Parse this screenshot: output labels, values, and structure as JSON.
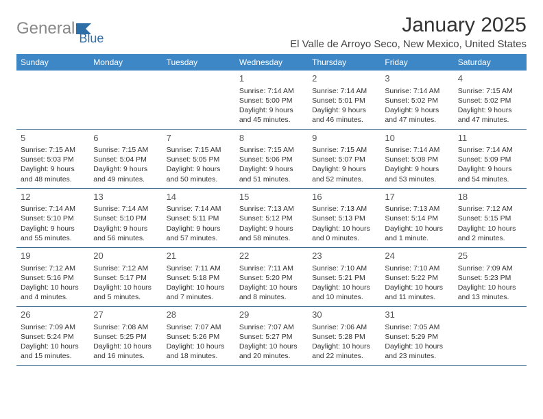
{
  "brand": {
    "part1": "General",
    "part2": "Blue"
  },
  "title": "January 2025",
  "location": "El Valle de Arroyo Seco, New Mexico, United States",
  "colors": {
    "header_bg": "#3d87c7",
    "header_fg": "#ffffff",
    "row_border": "#3d6a8f",
    "text": "#333333",
    "logo_gray": "#888888",
    "logo_blue": "#2f6fa8"
  },
  "weekdays": [
    "Sunday",
    "Monday",
    "Tuesday",
    "Wednesday",
    "Thursday",
    "Friday",
    "Saturday"
  ],
  "weeks": [
    [
      null,
      null,
      null,
      {
        "n": "1",
        "sr": "7:14 AM",
        "ss": "5:00 PM",
        "dl": "9 hours and 45 minutes."
      },
      {
        "n": "2",
        "sr": "7:14 AM",
        "ss": "5:01 PM",
        "dl": "9 hours and 46 minutes."
      },
      {
        "n": "3",
        "sr": "7:14 AM",
        "ss": "5:02 PM",
        "dl": "9 hours and 47 minutes."
      },
      {
        "n": "4",
        "sr": "7:15 AM",
        "ss": "5:02 PM",
        "dl": "9 hours and 47 minutes."
      }
    ],
    [
      {
        "n": "5",
        "sr": "7:15 AM",
        "ss": "5:03 PM",
        "dl": "9 hours and 48 minutes."
      },
      {
        "n": "6",
        "sr": "7:15 AM",
        "ss": "5:04 PM",
        "dl": "9 hours and 49 minutes."
      },
      {
        "n": "7",
        "sr": "7:15 AM",
        "ss": "5:05 PM",
        "dl": "9 hours and 50 minutes."
      },
      {
        "n": "8",
        "sr": "7:15 AM",
        "ss": "5:06 PM",
        "dl": "9 hours and 51 minutes."
      },
      {
        "n": "9",
        "sr": "7:15 AM",
        "ss": "5:07 PM",
        "dl": "9 hours and 52 minutes."
      },
      {
        "n": "10",
        "sr": "7:14 AM",
        "ss": "5:08 PM",
        "dl": "9 hours and 53 minutes."
      },
      {
        "n": "11",
        "sr": "7:14 AM",
        "ss": "5:09 PM",
        "dl": "9 hours and 54 minutes."
      }
    ],
    [
      {
        "n": "12",
        "sr": "7:14 AM",
        "ss": "5:10 PM",
        "dl": "9 hours and 55 minutes."
      },
      {
        "n": "13",
        "sr": "7:14 AM",
        "ss": "5:10 PM",
        "dl": "9 hours and 56 minutes."
      },
      {
        "n": "14",
        "sr": "7:14 AM",
        "ss": "5:11 PM",
        "dl": "9 hours and 57 minutes."
      },
      {
        "n": "15",
        "sr": "7:13 AM",
        "ss": "5:12 PM",
        "dl": "9 hours and 58 minutes."
      },
      {
        "n": "16",
        "sr": "7:13 AM",
        "ss": "5:13 PM",
        "dl": "10 hours and 0 minutes."
      },
      {
        "n": "17",
        "sr": "7:13 AM",
        "ss": "5:14 PM",
        "dl": "10 hours and 1 minute."
      },
      {
        "n": "18",
        "sr": "7:12 AM",
        "ss": "5:15 PM",
        "dl": "10 hours and 2 minutes."
      }
    ],
    [
      {
        "n": "19",
        "sr": "7:12 AM",
        "ss": "5:16 PM",
        "dl": "10 hours and 4 minutes."
      },
      {
        "n": "20",
        "sr": "7:12 AM",
        "ss": "5:17 PM",
        "dl": "10 hours and 5 minutes."
      },
      {
        "n": "21",
        "sr": "7:11 AM",
        "ss": "5:18 PM",
        "dl": "10 hours and 7 minutes."
      },
      {
        "n": "22",
        "sr": "7:11 AM",
        "ss": "5:20 PM",
        "dl": "10 hours and 8 minutes."
      },
      {
        "n": "23",
        "sr": "7:10 AM",
        "ss": "5:21 PM",
        "dl": "10 hours and 10 minutes."
      },
      {
        "n": "24",
        "sr": "7:10 AM",
        "ss": "5:22 PM",
        "dl": "10 hours and 11 minutes."
      },
      {
        "n": "25",
        "sr": "7:09 AM",
        "ss": "5:23 PM",
        "dl": "10 hours and 13 minutes."
      }
    ],
    [
      {
        "n": "26",
        "sr": "7:09 AM",
        "ss": "5:24 PM",
        "dl": "10 hours and 15 minutes."
      },
      {
        "n": "27",
        "sr": "7:08 AM",
        "ss": "5:25 PM",
        "dl": "10 hours and 16 minutes."
      },
      {
        "n": "28",
        "sr": "7:07 AM",
        "ss": "5:26 PM",
        "dl": "10 hours and 18 minutes."
      },
      {
        "n": "29",
        "sr": "7:07 AM",
        "ss": "5:27 PM",
        "dl": "10 hours and 20 minutes."
      },
      {
        "n": "30",
        "sr": "7:06 AM",
        "ss": "5:28 PM",
        "dl": "10 hours and 22 minutes."
      },
      {
        "n": "31",
        "sr": "7:05 AM",
        "ss": "5:29 PM",
        "dl": "10 hours and 23 minutes."
      },
      null
    ]
  ],
  "labels": {
    "sunrise": "Sunrise:",
    "sunset": "Sunset:",
    "daylight": "Daylight:"
  }
}
